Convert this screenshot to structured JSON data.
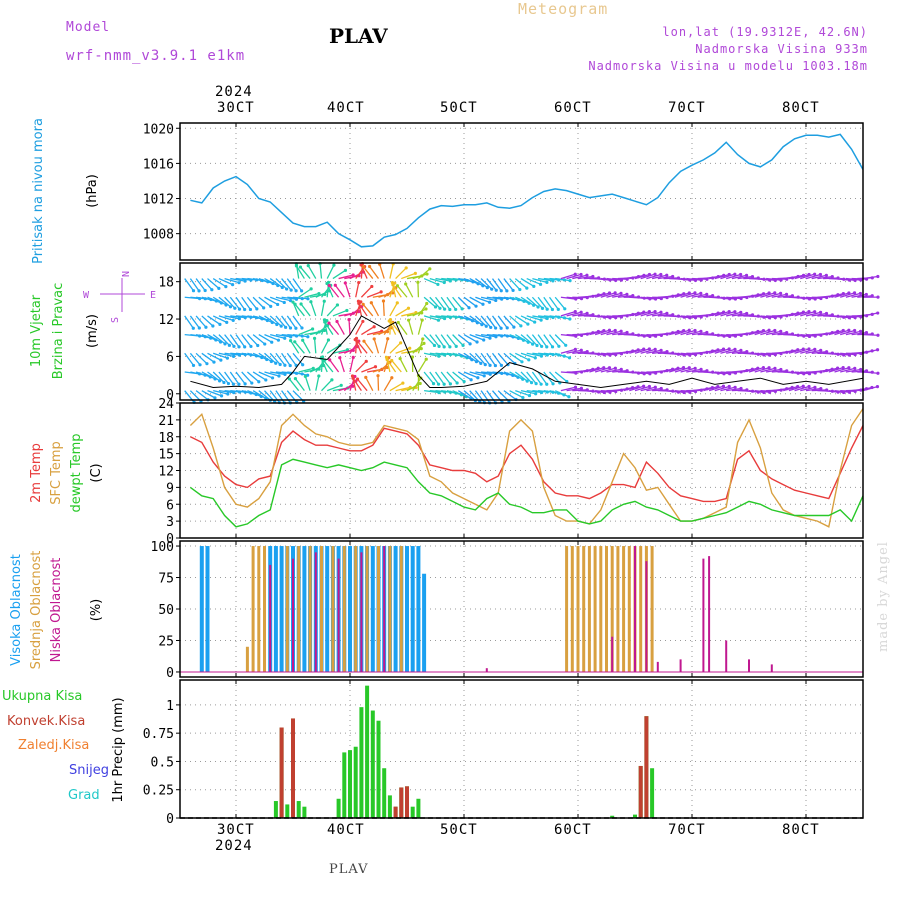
{
  "header": {
    "model_label": "Model",
    "model_name": "wrf-nmm_v3.9.1 e1km",
    "title": "PLAV",
    "meteogram_label": "Meteogram",
    "lonlat": "lon,lat (19.9312E, 42.6N)",
    "altitude": "Nadmorska Visina 933m",
    "model_altitude": "Nadmorska Visina u modelu 1003.18m"
  },
  "time_axis": {
    "year": "2024",
    "labels": [
      "30CT",
      "40CT",
      "50CT",
      "60CT",
      "70CT",
      "80CT"
    ]
  },
  "footer": {
    "location": "PLAV",
    "credit": "made by Angel"
  },
  "colors": {
    "pressure": "#1e9ee0",
    "wind_cyan": "#20c8e0",
    "wind_violet": "#9b30e0",
    "temp2m": "#e83c3c",
    "sfc_temp": "#d8a040",
    "dewpt": "#28c828",
    "high_cloud": "#1aa0f0",
    "mid_cloud": "#d8a040",
    "low_cloud": "#c01890",
    "total_precip": "#28c828",
    "conv_precip": "#c04030",
    "frozen": "#f08030",
    "snow": "#4040e0",
    "hail": "#20c8c8"
  },
  "chart_data": [
    {
      "type": "line",
      "name": "pressure",
      "ylabel_main": "Pritisak na nivou mora",
      "ylabel_unit": "(hPa)",
      "ylim": [
        1005,
        1020.6
      ],
      "yticks": [
        1008,
        1012,
        1016,
        1020
      ],
      "grid": true,
      "x_days": [
        2.6,
        2.7,
        2.8,
        2.9,
        3.0,
        3.1,
        3.2,
        3.3,
        3.4,
        3.5,
        3.6,
        3.7,
        3.8,
        3.9,
        4.0,
        4.1,
        4.2,
        4.3,
        4.4,
        4.5,
        4.6,
        4.7,
        4.8,
        4.9,
        5.0,
        5.1,
        5.2,
        5.3,
        5.4,
        5.5,
        5.6,
        5.7,
        5.8,
        5.9,
        6.0,
        6.1,
        6.2,
        6.3,
        6.4,
        6.5,
        6.6,
        6.7,
        6.8,
        6.9,
        7.0,
        7.1,
        7.2,
        7.3,
        7.4,
        7.5,
        7.6,
        7.7,
        7.8,
        7.9,
        8.0,
        8.1,
        8.2,
        8.3,
        8.4,
        8.5
      ],
      "values": [
        1011.8,
        1011.5,
        1013.2,
        1014.0,
        1014.5,
        1013.6,
        1012.0,
        1011.6,
        1010.4,
        1009.2,
        1008.8,
        1008.8,
        1009.3,
        1008.0,
        1007.3,
        1006.5,
        1006.6,
        1007.6,
        1007.9,
        1008.6,
        1009.8,
        1010.8,
        1011.2,
        1011.1,
        1011.3,
        1011.3,
        1011.5,
        1011.0,
        1010.9,
        1011.2,
        1012.1,
        1012.8,
        1013.1,
        1012.9,
        1012.5,
        1012.1,
        1012.3,
        1012.5,
        1012.1,
        1011.7,
        1011.3,
        1012.1,
        1013.8,
        1015.1,
        1015.8,
        1016.4,
        1017.2,
        1018.4,
        1017.0,
        1016.0,
        1015.6,
        1016.4,
        1017.9,
        1018.8,
        1019.2,
        1019.2,
        1019.0,
        1019.3,
        1017.6,
        1015.3
      ]
    },
    {
      "type": "wind",
      "name": "wind",
      "ylabel_lines": [
        "10m Vjetar",
        "Brzina i Pravac"
      ],
      "ylabel_unit": "(m/s)",
      "ylim": [
        -1,
        21
      ],
      "yticks": [
        0,
        6,
        12,
        18
      ],
      "grid": true,
      "compass": {
        "n": "N",
        "e": "E",
        "s": "S",
        "w": "W"
      },
      "x_days": [
        2.6,
        2.8,
        3.0,
        3.2,
        3.4,
        3.5,
        3.6,
        3.8,
        3.9,
        4.0,
        4.1,
        4.3,
        4.4,
        4.6,
        4.7,
        4.8,
        5.0,
        5.2,
        5.4,
        5.6,
        5.8,
        6.0,
        6.2,
        6.4,
        6.6,
        6.8,
        7.0,
        7.2,
        7.4,
        7.6,
        7.8,
        8.0,
        8.2,
        8.5
      ],
      "speed": [
        2.0,
        1.0,
        1.2,
        1.0,
        1.5,
        3.5,
        6.0,
        5.5,
        7.5,
        9.5,
        12.5,
        10.5,
        11.5,
        3.0,
        1.0,
        1.0,
        1.2,
        2.0,
        5.0,
        4.0,
        2.0,
        1.5,
        1.0,
        1.5,
        2.0,
        1.5,
        2.5,
        1.5,
        2.0,
        2.5,
        1.5,
        2.0,
        1.5,
        2.5
      ]
    },
    {
      "type": "line",
      "name": "temperature",
      "ylabel_lines": [
        "2m Temp",
        "SFC Temp",
        "dewpt Temp"
      ],
      "ylabel_unit": "(C)",
      "ylim": [
        0,
        24
      ],
      "yticks": [
        0,
        3,
        6,
        9,
        12,
        15,
        18,
        21,
        24
      ],
      "grid": true,
      "x_days": [
        2.6,
        2.7,
        2.8,
        2.9,
        3.0,
        3.1,
        3.2,
        3.3,
        3.4,
        3.5,
        3.6,
        3.7,
        3.8,
        3.9,
        4.0,
        4.1,
        4.2,
        4.3,
        4.4,
        4.5,
        4.6,
        4.7,
        4.8,
        4.9,
        5.0,
        5.1,
        5.2,
        5.3,
        5.4,
        5.5,
        5.6,
        5.7,
        5.8,
        5.9,
        6.0,
        6.1,
        6.2,
        6.3,
        6.4,
        6.5,
        6.6,
        6.7,
        6.8,
        6.9,
        7.0,
        7.1,
        7.2,
        7.3,
        7.4,
        7.5,
        7.6,
        7.7,
        7.8,
        7.9,
        8.0,
        8.1,
        8.2,
        8.3,
        8.4,
        8.5
      ],
      "series": [
        {
          "name": "2m Temp",
          "values": [
            18.0,
            17.0,
            13.5,
            11.0,
            9.5,
            9.0,
            10.5,
            11.0,
            17.0,
            19.0,
            17.5,
            16.5,
            16.5,
            16.0,
            15.5,
            15.5,
            16.5,
            19.5,
            19.0,
            18.5,
            16.5,
            13.0,
            12.5,
            12.0,
            12.0,
            11.5,
            10.0,
            11.0,
            15.0,
            16.5,
            14.0,
            10.0,
            8.0,
            7.5,
            7.5,
            7.0,
            8.0,
            9.5,
            9.5,
            9.0,
            13.5,
            11.5,
            9.0,
            7.5,
            7.0,
            6.5,
            6.5,
            7.0,
            14.0,
            15.5,
            12.0,
            10.5,
            9.5,
            8.5,
            8.0,
            7.5,
            7.0,
            11.5,
            16.0,
            20.0
          ]
        },
        {
          "name": "SFC Temp",
          "values": [
            20.0,
            22.0,
            16.0,
            9.0,
            6.0,
            5.5,
            7.0,
            10.0,
            20.0,
            22.0,
            20.0,
            18.5,
            18.0,
            17.0,
            16.5,
            16.5,
            17.0,
            20.0,
            19.5,
            19.0,
            17.5,
            11.0,
            10.0,
            8.0,
            7.0,
            6.0,
            5.0,
            8.0,
            19.0,
            21.0,
            19.0,
            9.0,
            4.0,
            3.0,
            3.0,
            2.5,
            5.0,
            10.0,
            15.0,
            12.5,
            8.5,
            9.0,
            6.0,
            3.0,
            3.0,
            3.5,
            4.5,
            5.5,
            17.0,
            21.0,
            16.0,
            8.0,
            5.0,
            4.0,
            3.5,
            3.0,
            2.0,
            12.0,
            20.0,
            23.0
          ]
        },
        {
          "name": "dewpt Temp",
          "values": [
            9.0,
            7.5,
            7.0,
            4.0,
            2.0,
            2.5,
            4.0,
            5.0,
            13.0,
            14.0,
            13.5,
            13.0,
            12.5,
            13.0,
            12.5,
            12.0,
            12.5,
            13.5,
            13.0,
            12.5,
            10.0,
            8.0,
            7.5,
            6.5,
            5.5,
            5.0,
            7.0,
            8.0,
            6.0,
            5.5,
            4.5,
            4.5,
            5.0,
            5.0,
            3.0,
            2.5,
            3.0,
            5.0,
            6.0,
            6.5,
            5.5,
            5.0,
            4.0,
            3.0,
            3.0,
            3.5,
            4.0,
            4.5,
            5.5,
            6.5,
            6.0,
            5.0,
            4.5,
            4.0,
            4.0,
            4.0,
            4.0,
            5.0,
            3.0,
            7.5
          ]
        }
      ]
    },
    {
      "type": "bar",
      "name": "clouds",
      "ylabel_lines": [
        "Visoka Oblacnost",
        "Srednja Oblacnost",
        "Niska Oblacnost"
      ],
      "ylabel_unit": "(%)",
      "ylim": [
        -4,
        104
      ],
      "yticks": [
        0,
        25,
        50,
        75,
        100
      ],
      "grid": true,
      "series": [
        {
          "name": "Visoka Oblacnost",
          "x_days": [
            2.7,
            2.75,
            3.3,
            3.35,
            3.4,
            3.45,
            3.5,
            3.55,
            3.6,
            3.65,
            3.7,
            3.75,
            3.8,
            3.85,
            3.9,
            3.95,
            4.0,
            4.05,
            4.1,
            4.15,
            4.2,
            4.25,
            4.3,
            4.35,
            4.4,
            4.45,
            4.5,
            4.55,
            4.6,
            4.65
          ],
          "values": [
            100,
            100,
            100,
            100,
            100,
            100,
            100,
            100,
            100,
            100,
            100,
            100,
            100,
            100,
            100,
            100,
            100,
            100,
            100,
            100,
            100,
            100,
            100,
            100,
            100,
            100,
            100,
            100,
            100,
            78
          ]
        },
        {
          "name": "Srednja Oblacnost",
          "x_days": [
            3.1,
            3.15,
            3.2,
            3.25,
            3.45,
            3.55,
            3.65,
            3.75,
            3.85,
            3.95,
            4.05,
            4.15,
            4.25,
            4.35,
            4.45,
            5.9,
            5.95,
            6.0,
            6.05,
            6.1,
            6.15,
            6.2,
            6.25,
            6.3,
            6.35,
            6.4,
            6.45,
            6.5,
            6.55,
            6.6,
            6.65
          ],
          "values": [
            20,
            100,
            100,
            100,
            100,
            100,
            100,
            100,
            100,
            100,
            100,
            100,
            100,
            100,
            100,
            100,
            100,
            100,
            100,
            100,
            100,
            100,
            100,
            100,
            100,
            100,
            100,
            100,
            100,
            100,
            100
          ]
        },
        {
          "name": "Niska Oblacnost",
          "x_days": [
            3.3,
            3.5,
            3.7,
            3.9,
            4.1,
            4.3,
            5.2,
            6.3,
            6.5,
            6.6,
            6.7,
            6.9,
            7.1,
            7.15,
            7.3,
            7.5,
            7.7
          ],
          "values": [
            85,
            90,
            95,
            90,
            95,
            100,
            3,
            28,
            100,
            88,
            8,
            10,
            90,
            92,
            25,
            10,
            6
          ]
        }
      ]
    },
    {
      "type": "bar",
      "name": "precip",
      "legend": [
        "Ukupna Kisa",
        "Konvek.Kisa",
        "Zaledj.Kisa",
        "Snijeg",
        "Grad"
      ],
      "ylabel_unit": "1hr Precip (mm)",
      "ylim": [
        0,
        1.22
      ],
      "yticks": [
        0,
        0.25,
        0.5,
        0.75,
        1
      ],
      "ytick_labels": [
        "0",
        "0.25",
        "0.5",
        "0.75",
        "1"
      ],
      "grid": true,
      "series": [
        {
          "name": "Ukupna Kisa",
          "x_days": [
            3.35,
            3.4,
            3.45,
            3.5,
            3.55,
            3.6,
            3.9,
            3.95,
            4.0,
            4.05,
            4.1,
            4.15,
            4.2,
            4.25,
            4.3,
            4.35,
            4.4,
            4.45,
            4.5,
            4.55,
            4.6,
            6.3,
            6.5,
            6.55,
            6.6,
            6.65
          ],
          "values": [
            0.15,
            0.8,
            0.12,
            0.88,
            0.15,
            0.1,
            0.17,
            0.58,
            0.6,
            0.63,
            0.98,
            1.17,
            0.95,
            0.86,
            0.44,
            0.2,
            0.1,
            0.27,
            0.28,
            0.1,
            0.17,
            0.02,
            0.03,
            0.46,
            0.9,
            0.44
          ]
        },
        {
          "name": "Konvek.Kisa",
          "x_days": [
            3.4,
            3.5,
            4.4,
            4.45,
            4.5,
            6.55,
            6.6
          ],
          "values": [
            0.8,
            0.88,
            0.1,
            0.27,
            0.28,
            0.46,
            0.9
          ]
        }
      ]
    }
  ]
}
